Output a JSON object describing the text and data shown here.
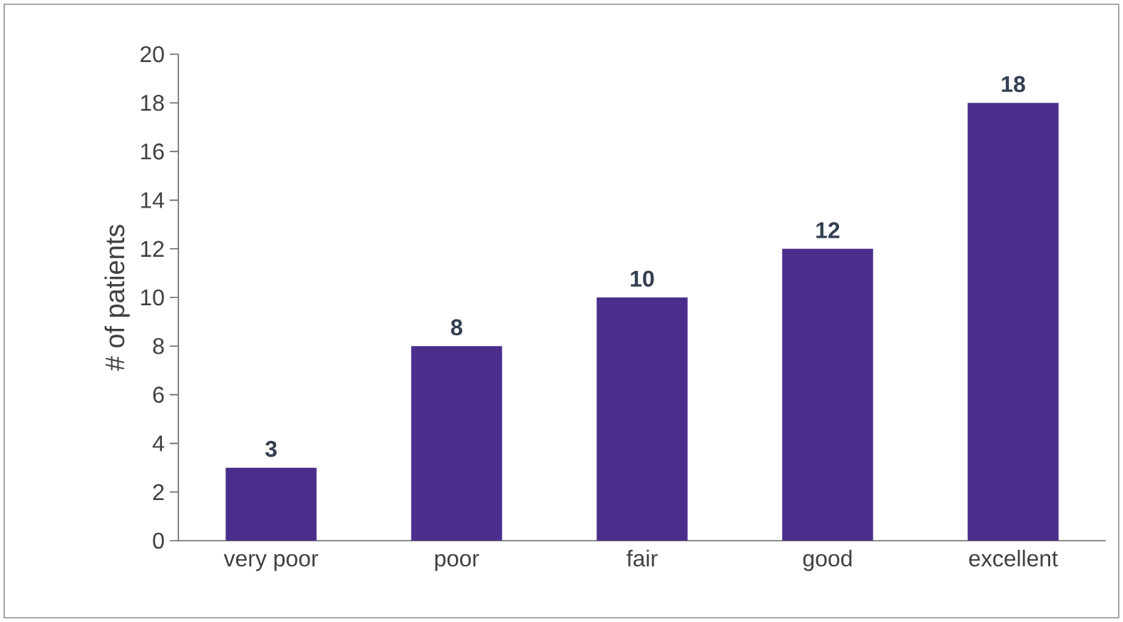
{
  "chart_data": {
    "type": "bar",
    "ylabel": "# of patients",
    "categories": [
      "very poor",
      "poor",
      "fair",
      "good",
      "excellent"
    ],
    "values": [
      3,
      8,
      10,
      12,
      18
    ],
    "color": "#4b2e8c",
    "ylim": [
      0,
      20
    ],
    "yticks": [
      0,
      2,
      4,
      6,
      8,
      10,
      12,
      14,
      16,
      18,
      20
    ],
    "data_labels": true
  }
}
